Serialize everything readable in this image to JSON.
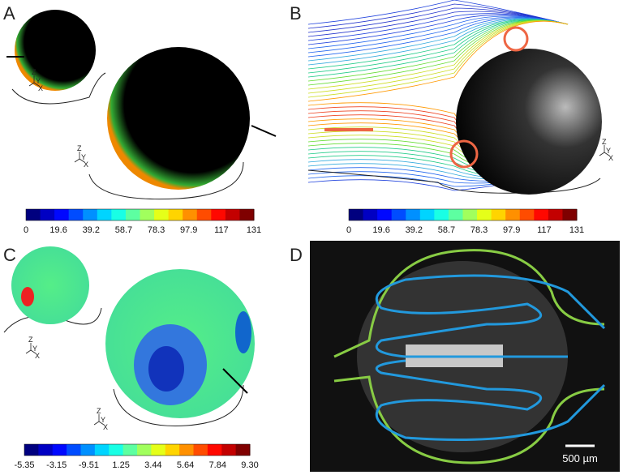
{
  "panels": [
    {
      "label": "A",
      "colorbar": [
        "0",
        "19.6",
        "39.2",
        "58.7",
        "78.3",
        "97.9",
        "117",
        "131"
      ],
      "triads": [
        [
          "Z",
          "Y",
          "X"
        ],
        [
          "Z",
          "Y",
          "X"
        ]
      ]
    },
    {
      "label": "B",
      "colorbar": [
        "0",
        "19.6",
        "39.2",
        "58.7",
        "78.3",
        "97.9",
        "117",
        "131"
      ],
      "triads": [
        [
          "Z",
          "Y",
          "X"
        ]
      ]
    },
    {
      "label": "C",
      "colorbar": [
        "-5.35",
        "-3.15",
        "-9.51",
        "1.25",
        "3.44",
        "5.64",
        "7.84",
        "9.30"
      ],
      "triads": [
        [
          "Z",
          "Y",
          "X"
        ],
        [
          "Z",
          "Y",
          "X"
        ]
      ]
    },
    {
      "label": "D",
      "scale_bar": "500 µm"
    }
  ]
}
